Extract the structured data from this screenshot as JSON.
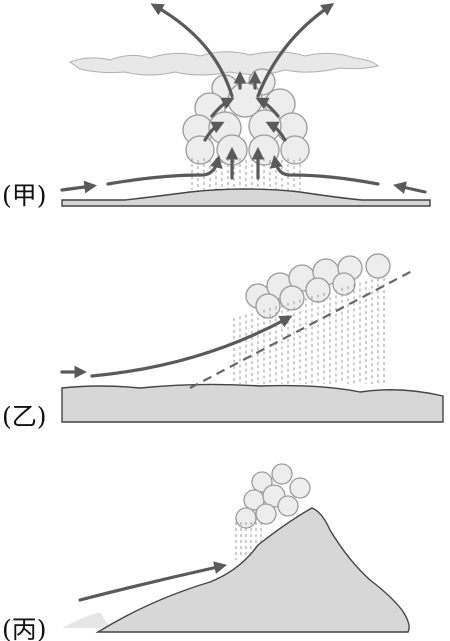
{
  "panels": [
    {
      "id": "jia",
      "label": "(甲)"
    },
    {
      "id": "yi",
      "label": "(乙)"
    },
    {
      "id": "bing",
      "label": "(丙)"
    }
  ],
  "colors": {
    "ground_fill": "#d7d7d7",
    "cloud_fill": "#ededed",
    "arrow": "#5a5a5a",
    "rain": "#9b9b9b"
  }
}
